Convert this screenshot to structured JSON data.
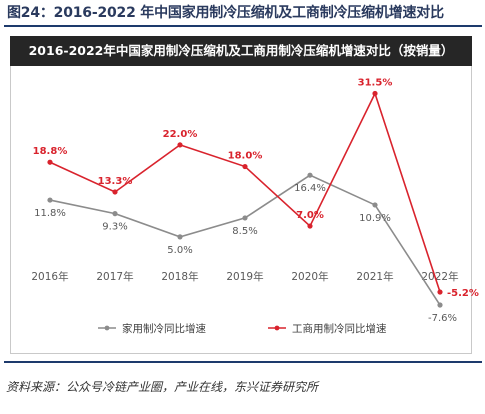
{
  "figure": {
    "title": "图24：2016-2022 年中国家用制冷压缩机及工商制冷压缩机增速对比",
    "source": "资料来源：公众号冷链产业圈，产业在线，东兴证券研究所"
  },
  "chart_data": {
    "type": "line",
    "title": "2016-2022年中国家用制冷压缩机及工商用制冷压缩机增速对比（按销量）",
    "categories": [
      "2016年",
      "2017年",
      "2018年",
      "2019年",
      "2020年",
      "2021年",
      "2022年"
    ],
    "series": [
      {
        "name": "家用制冷同比增速",
        "color": "#8c8c8c",
        "values": [
          11.8,
          9.3,
          5.0,
          8.5,
          16.4,
          10.9,
          -7.6
        ],
        "labels": [
          "11.8%",
          "9.3%",
          "5.0%",
          "8.5%",
          "16.4%",
          "10.9%",
          "-7.6%"
        ]
      },
      {
        "name": "工商用制冷同比增速",
        "color": "#d9232d",
        "values": [
          18.8,
          13.3,
          22.0,
          18.0,
          7.0,
          31.5,
          -5.2
        ],
        "labels": [
          "18.8%",
          "13.3%",
          "22.0%",
          "18.0%",
          "7.0%",
          "31.5%",
          "-5.2%"
        ]
      }
    ],
    "ylim": [
      -10,
      34
    ],
    "grid": false,
    "legend": "bottom"
  }
}
